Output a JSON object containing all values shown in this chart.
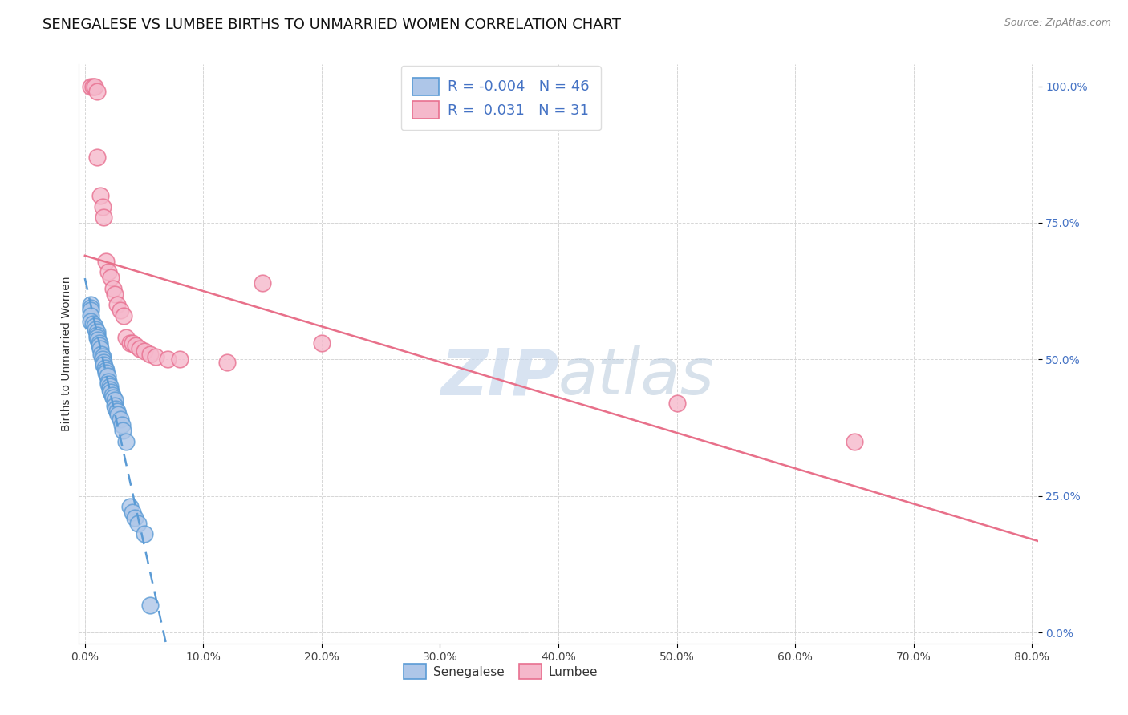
{
  "title": "SENEGALESE VS LUMBEE BIRTHS TO UNMARRIED WOMEN CORRELATION CHART",
  "source": "Source: ZipAtlas.com",
  "ylabel": "Births to Unmarried Women",
  "senegalese_R": -0.004,
  "senegalese_N": 46,
  "lumbee_R": 0.031,
  "lumbee_N": 31,
  "senegalese_color": "#aec6e8",
  "lumbee_color": "#f5b8cb",
  "senegalese_edge_color": "#5b9bd5",
  "lumbee_edge_color": "#e87090",
  "senegalese_line_color": "#5b9bd5",
  "lumbee_line_color": "#e8708a",
  "watermark_zip_color": "#c8d8ec",
  "watermark_atlas_color": "#b8c8dc",
  "title_fontsize": 13,
  "axis_label_fontsize": 10,
  "tick_fontsize": 10,
  "legend_fontsize": 13,
  "xlim": [
    -0.005,
    0.805
  ],
  "ylim": [
    -0.02,
    1.04
  ],
  "xticks": [
    0.0,
    0.1,
    0.2,
    0.3,
    0.4,
    0.5,
    0.6,
    0.7,
    0.8
  ],
  "yticks": [
    0.0,
    0.25,
    0.5,
    0.75,
    1.0
  ],
  "senegalese_x": [
    0.005,
    0.005,
    0.005,
    0.005,
    0.005,
    0.007,
    0.008,
    0.009,
    0.01,
    0.01,
    0.01,
    0.011,
    0.012,
    0.012,
    0.013,
    0.014,
    0.015,
    0.015,
    0.016,
    0.016,
    0.017,
    0.018,
    0.018,
    0.019,
    0.02,
    0.02,
    0.021,
    0.021,
    0.022,
    0.023,
    0.024,
    0.025,
    0.025,
    0.026,
    0.027,
    0.028,
    0.03,
    0.031,
    0.032,
    0.035,
    0.038,
    0.04,
    0.042,
    0.045,
    0.05,
    0.055
  ],
  "senegalese_y": [
    0.6,
    0.595,
    0.59,
    0.58,
    0.57,
    0.565,
    0.56,
    0.555,
    0.55,
    0.545,
    0.54,
    0.535,
    0.53,
    0.525,
    0.52,
    0.51,
    0.505,
    0.5,
    0.495,
    0.49,
    0.485,
    0.48,
    0.475,
    0.47,
    0.46,
    0.455,
    0.45,
    0.445,
    0.44,
    0.435,
    0.43,
    0.425,
    0.415,
    0.41,
    0.405,
    0.4,
    0.39,
    0.38,
    0.37,
    0.35,
    0.23,
    0.22,
    0.21,
    0.2,
    0.18,
    0.05
  ],
  "lumbee_x": [
    0.005,
    0.007,
    0.008,
    0.01,
    0.01,
    0.013,
    0.015,
    0.016,
    0.018,
    0.02,
    0.022,
    0.024,
    0.025,
    0.027,
    0.03,
    0.033,
    0.035,
    0.038,
    0.04,
    0.043,
    0.046,
    0.05,
    0.055,
    0.06,
    0.07,
    0.08,
    0.12,
    0.15,
    0.2,
    0.5,
    0.65
  ],
  "lumbee_y": [
    1.0,
    1.0,
    1.0,
    0.99,
    0.87,
    0.8,
    0.78,
    0.76,
    0.68,
    0.66,
    0.65,
    0.63,
    0.62,
    0.6,
    0.59,
    0.58,
    0.54,
    0.53,
    0.53,
    0.525,
    0.52,
    0.515,
    0.51,
    0.505,
    0.5,
    0.5,
    0.495,
    0.64,
    0.53,
    0.42,
    0.35
  ]
}
